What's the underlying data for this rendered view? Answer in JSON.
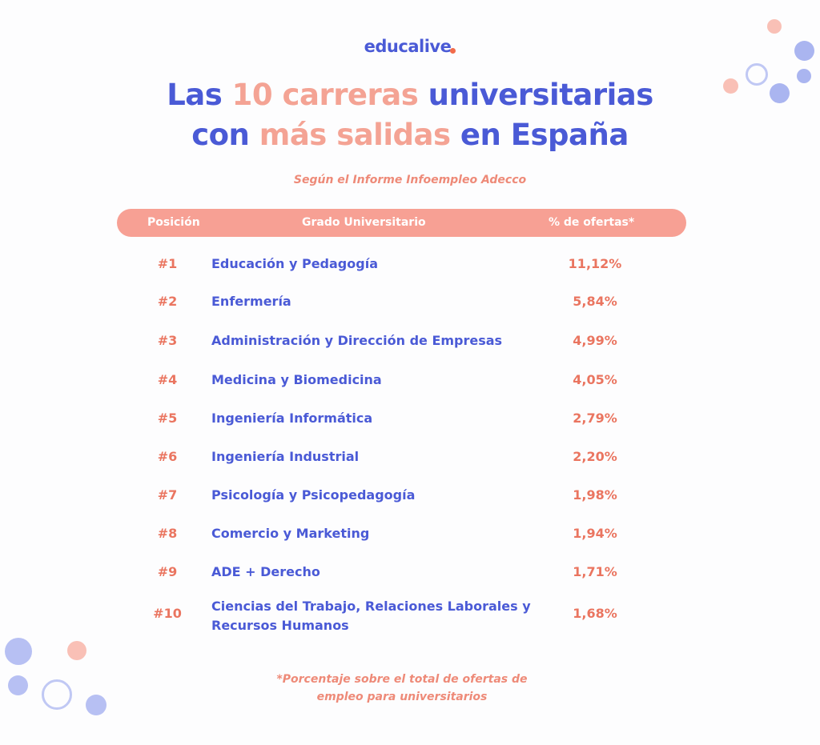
{
  "logo": {
    "text": "educalive"
  },
  "title": {
    "part1": "Las ",
    "hl1": "10 carreras",
    "part2": " universitarias",
    "part3": "con ",
    "hl2": "más salidas",
    "part4": " en España"
  },
  "subtitle": "Según el Informe Infoempleo Adecco",
  "colors": {
    "blue": "#4a5ad6",
    "salmon": "#f7a094",
    "accent": "#ea7560"
  },
  "chart_data": {
    "type": "table",
    "columns": [
      "Posición",
      "Grado Universitario",
      "% de ofertas*"
    ],
    "rows": [
      {
        "rank": "#1",
        "degree": "Educación y Pedagogía",
        "pct": "11,12%"
      },
      {
        "rank": "#2",
        "degree": "Enfermería",
        "pct": "5,84%"
      },
      {
        "rank": "#3",
        "degree": "Administración y Dirección de Empresas",
        "pct": "4,99%"
      },
      {
        "rank": "#4",
        "degree": "Medicina y Biomedicina",
        "pct": "4,05%"
      },
      {
        "rank": "#5",
        "degree": "Ingeniería Informática",
        "pct": "2,79%"
      },
      {
        "rank": "#6",
        "degree": "Ingeniería Industrial",
        "pct": "2,20%"
      },
      {
        "rank": "#7",
        "degree": "Psicología y Psicopedagogía",
        "pct": "1,98%"
      },
      {
        "rank": "#8",
        "degree": "Comercio y Marketing",
        "pct": "1,94%"
      },
      {
        "rank": "#9",
        "degree": "ADE + Derecho",
        "pct": "1,71%"
      },
      {
        "rank": "#10",
        "degree": "Ciencias del Trabajo, Relaciones Laborales y Recursos Humanos",
        "pct": "1,68%"
      }
    ]
  },
  "footnote": {
    "line1": "*Porcentaje sobre el total de ofertas de",
    "line2": "empleo para universitarios"
  }
}
